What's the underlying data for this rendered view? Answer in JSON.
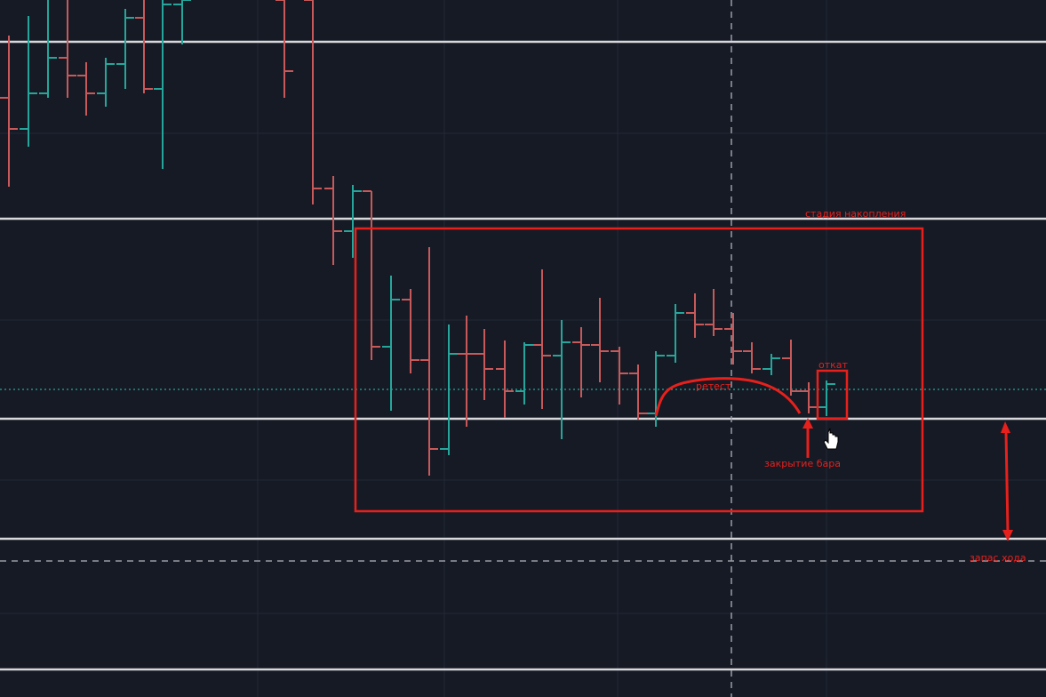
{
  "annotations": {
    "accumulation": "стадия накопления",
    "pullback": "откат",
    "retest": "ретест",
    "bar_close": "закрытие бара",
    "move_reserve": "запас хода"
  }
}
